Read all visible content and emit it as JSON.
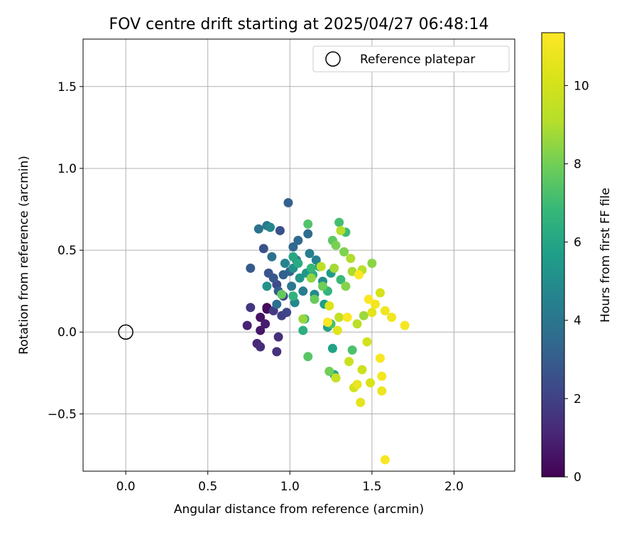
{
  "chart_data": {
    "type": "scatter",
    "title": "FOV centre drift starting at 2025/04/27 06:48:14",
    "xlabel": "Angular distance from reference (arcmin)",
    "ylabel": "Rotation from reference (arcmin)",
    "xlim": [
      -0.26,
      2.37
    ],
    "ylim": [
      -0.85,
      1.79
    ],
    "xticks": [
      0.0,
      0.5,
      1.0,
      1.5,
      2.0
    ],
    "xtick_labels": [
      "0.0",
      "0.5",
      "1.0",
      "1.5",
      "2.0"
    ],
    "yticks": [
      -0.5,
      0.0,
      0.5,
      1.0,
      1.5
    ],
    "ytick_labels": [
      "−0.5",
      "0.0",
      "0.5",
      "1.0",
      "1.5"
    ],
    "grid": true,
    "legend": {
      "position": "top-right",
      "entries": [
        {
          "label": "Reference platepar",
          "marker": "open-circle"
        }
      ]
    },
    "reference_point": {
      "x": 0.0,
      "y": 0.0
    },
    "colorbar": {
      "label": "Hours from first FF file",
      "range": [
        0,
        11.35
      ],
      "ticks": [
        0,
        2,
        4,
        6,
        8,
        10
      ],
      "tick_labels": [
        "0",
        "2",
        "4",
        "6",
        "8",
        "10"
      ],
      "colormap": "viridis"
    },
    "series": [
      {
        "points": [
          [
            0.86,
            0.15,
            0.1
          ],
          [
            0.86,
            0.14,
            0.3
          ],
          [
            0.82,
            0.09,
            0.5
          ],
          [
            0.82,
            0.01,
            0.6
          ],
          [
            0.85,
            0.05,
            0.8
          ],
          [
            0.74,
            0.04,
            1.0
          ],
          [
            0.8,
            -0.07,
            1.1
          ],
          [
            0.82,
            -0.09,
            1.3
          ],
          [
            0.93,
            -0.03,
            1.4
          ],
          [
            0.92,
            -0.12,
            1.5
          ],
          [
            0.76,
            0.15,
            1.7
          ],
          [
            0.9,
            0.13,
            1.8
          ],
          [
            0.95,
            0.1,
            2.0
          ],
          [
            0.96,
            0.22,
            2.1
          ],
          [
            0.98,
            0.12,
            2.2
          ],
          [
            0.92,
            0.29,
            2.3
          ],
          [
            0.94,
            0.62,
            2.5
          ],
          [
            0.84,
            0.51,
            2.6
          ],
          [
            0.87,
            0.36,
            2.7
          ],
          [
            0.9,
            0.33,
            2.8
          ],
          [
            0.76,
            0.39,
            2.9
          ],
          [
            0.93,
            0.25,
            3.0
          ],
          [
            0.96,
            0.35,
            3.1
          ],
          [
            0.99,
            0.79,
            3.2
          ],
          [
            1.0,
            0.37,
            3.3
          ],
          [
            1.02,
            0.52,
            3.4
          ],
          [
            1.05,
            0.56,
            3.5
          ],
          [
            1.11,
            0.6,
            3.6
          ],
          [
            0.92,
            0.17,
            3.7
          ],
          [
            0.89,
            0.46,
            3.8
          ],
          [
            0.81,
            0.63,
            3.9
          ],
          [
            0.86,
            0.65,
            4.0
          ],
          [
            1.01,
            0.28,
            4.1
          ],
          [
            1.04,
            0.44,
            4.2
          ],
          [
            1.08,
            0.25,
            4.3
          ],
          [
            1.12,
            0.48,
            4.4
          ],
          [
            1.16,
            0.44,
            4.5
          ],
          [
            0.97,
            0.42,
            4.6
          ],
          [
            0.88,
            0.64,
            4.7
          ],
          [
            1.03,
            0.18,
            4.8
          ],
          [
            1.15,
            0.23,
            4.9
          ],
          [
            1.2,
            0.31,
            5.0
          ],
          [
            1.02,
            0.39,
            5.1
          ],
          [
            0.86,
            0.28,
            5.2
          ],
          [
            1.06,
            0.33,
            5.3
          ],
          [
            1.1,
            0.36,
            5.4
          ],
          [
            1.18,
            0.4,
            5.5
          ],
          [
            1.25,
            0.36,
            5.6
          ],
          [
            1.21,
            0.17,
            5.7
          ],
          [
            1.23,
            0.03,
            5.8
          ],
          [
            1.26,
            -0.1,
            5.9
          ],
          [
            1.27,
            -0.26,
            6.0
          ],
          [
            1.02,
            0.46,
            6.1
          ],
          [
            1.05,
            0.42,
            6.2
          ],
          [
            1.14,
            0.35,
            6.3
          ],
          [
            1.08,
            0.01,
            6.4
          ],
          [
            1.09,
            0.08,
            6.5
          ],
          [
            1.02,
            0.22,
            6.6
          ],
          [
            1.23,
            0.25,
            6.7
          ],
          [
            1.13,
            0.39,
            6.8
          ],
          [
            1.31,
            0.32,
            6.9
          ],
          [
            1.34,
            0.61,
            7.0
          ],
          [
            1.3,
            0.67,
            7.1
          ],
          [
            1.25,
            0.05,
            7.2
          ],
          [
            1.38,
            -0.11,
            7.3
          ],
          [
            1.11,
            0.66,
            7.4
          ],
          [
            1.11,
            -0.15,
            7.5
          ],
          [
            1.26,
            0.56,
            7.6
          ],
          [
            0.95,
            0.23,
            7.7
          ],
          [
            1.15,
            0.2,
            7.8
          ],
          [
            1.2,
            0.28,
            7.9
          ],
          [
            1.24,
            -0.24,
            8.0
          ],
          [
            1.28,
            0.53,
            8.1
          ],
          [
            1.33,
            0.49,
            8.2
          ],
          [
            1.34,
            0.28,
            8.3
          ],
          [
            1.5,
            0.42,
            8.4
          ],
          [
            1.13,
            0.33,
            8.5
          ],
          [
            1.08,
            0.08,
            8.6
          ],
          [
            1.45,
            0.1,
            8.7
          ],
          [
            1.27,
            0.39,
            8.8
          ],
          [
            1.38,
            0.37,
            8.9
          ],
          [
            1.37,
            0.45,
            9.0
          ],
          [
            1.31,
            0.62,
            9.1
          ],
          [
            1.44,
            0.38,
            9.2
          ],
          [
            1.41,
            0.05,
            9.3
          ],
          [
            1.19,
            0.4,
            9.4
          ],
          [
            1.3,
            0.09,
            9.5
          ],
          [
            1.28,
            -0.28,
            9.6
          ],
          [
            1.36,
            -0.18,
            9.7
          ],
          [
            1.44,
            -0.23,
            9.8
          ],
          [
            1.39,
            -0.34,
            9.9
          ],
          [
            1.47,
            -0.06,
            10.0
          ],
          [
            1.55,
            0.24,
            10.1
          ],
          [
            1.49,
            -0.31,
            10.2
          ],
          [
            1.24,
            0.16,
            10.3
          ],
          [
            1.29,
            0.01,
            10.4
          ],
          [
            1.5,
            0.12,
            10.5
          ],
          [
            1.43,
            -0.43,
            10.6
          ],
          [
            1.41,
            -0.32,
            10.7
          ],
          [
            1.56,
            -0.36,
            10.8
          ],
          [
            1.58,
            0.13,
            10.9
          ],
          [
            1.62,
            0.09,
            11.0
          ],
          [
            1.52,
            0.17,
            11.0
          ],
          [
            1.56,
            -0.27,
            11.1
          ],
          [
            1.7,
            0.04,
            11.1
          ],
          [
            1.55,
            -0.16,
            11.2
          ],
          [
            1.58,
            -0.78,
            11.2
          ],
          [
            1.48,
            0.2,
            11.3
          ],
          [
            1.42,
            0.35,
            11.3
          ],
          [
            1.23,
            0.06,
            11.3
          ],
          [
            1.35,
            0.09,
            11.3
          ]
        ]
      }
    ]
  }
}
